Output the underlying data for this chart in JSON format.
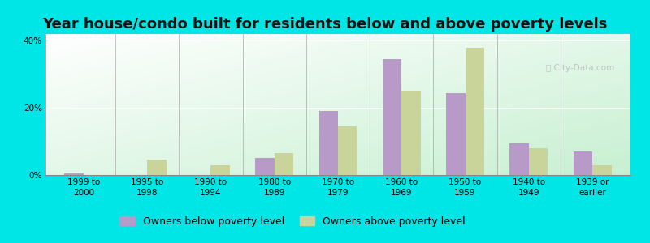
{
  "title": "Year house/condo built for residents below and above poverty levels",
  "categories": [
    "1999 to\n2000",
    "1995 to\n1998",
    "1990 to\n1994",
    "1980 to\n1989",
    "1970 to\n1979",
    "1960 to\n1969",
    "1950 to\n1959",
    "1940 to\n1949",
    "1939 or\nearlier"
  ],
  "below_poverty": [
    0.5,
    0.0,
    0.0,
    5.0,
    19.0,
    34.5,
    24.5,
    9.5,
    7.0
  ],
  "above_poverty": [
    0.0,
    4.5,
    3.0,
    6.5,
    14.5,
    25.0,
    38.0,
    8.0,
    3.0
  ],
  "below_color": "#b89ac8",
  "above_color": "#c8d49a",
  "background_outer": "#00e5e5",
  "ylim_max": 42,
  "yticks": [
    0,
    20,
    40
  ],
  "ytick_labels": [
    "0%",
    "20%",
    "40%"
  ],
  "legend_below": "Owners below poverty level",
  "legend_above": "Owners above poverty level",
  "title_fontsize": 13,
  "tick_fontsize": 7.5,
  "legend_fontsize": 9,
  "bar_width": 0.3,
  "watermark": "City-Data.com"
}
